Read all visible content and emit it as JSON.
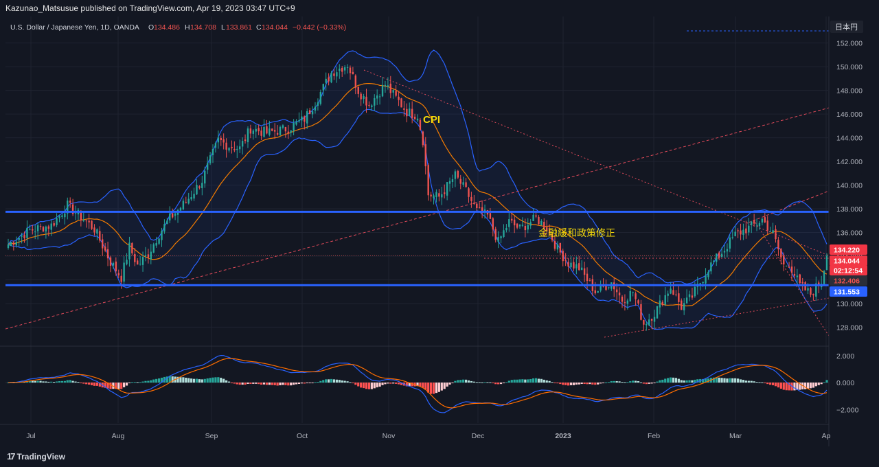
{
  "header": {
    "publish_line": "Kazunao_Matsusue published on TradingView.com, Apr 19, 2023 03:47 UTC+9"
  },
  "footer": {
    "brand": "TradingView"
  },
  "chart_data": {
    "type": "candlestick",
    "symbol_line": "U.S. Dollar / Japanese Yen, 1D, OANDA",
    "ohlc_label": {
      "o_prefix": "O",
      "o": "134.486",
      "h_prefix": "H",
      "h": "134.708",
      "l_prefix": "L",
      "l": "133.861",
      "c_prefix": "C",
      "c": "134.044",
      "change": "−0.442 (−0.33%)"
    },
    "currency_label": "日本円",
    "y_ticks": [
      "152.000",
      "150.000",
      "148.000",
      "146.000",
      "144.000",
      "142.000",
      "140.000",
      "138.000",
      "136.000",
      "134.000",
      "132.000",
      "130.000",
      "128.000"
    ],
    "y_tick_values": [
      152,
      150,
      148,
      146,
      144,
      142,
      140,
      138,
      136,
      134,
      132,
      130,
      128
    ],
    "ylim": [
      126.4,
      153.2
    ],
    "x_ticks": [
      "Jul",
      "Aug",
      "Sep",
      "Oct",
      "Nov",
      "Dec",
      "2023",
      "Feb",
      "Mar",
      "Ap"
    ],
    "price_badges": [
      {
        "text": "134.220",
        "color": "#f23645"
      },
      {
        "text": "134.044",
        "color": "#f23645"
      },
      {
        "text": "02:12:54",
        "color": "#f23645"
      },
      {
        "text": "132.406",
        "color": "#2a2e39"
      },
      {
        "text": "131.553",
        "color": "#2962ff"
      }
    ],
    "horizontal_levels": [
      137.75,
      131.55
    ],
    "annotations": [
      {
        "text": "CPI",
        "color": "#f5d90a"
      },
      {
        "text": "金融緩和政策修正",
        "color": "#f5d90a"
      }
    ],
    "bollinger_color": "#2962ff",
    "ma_color": "#f57c00",
    "up_color": "#26a69a",
    "down_color": "#ef5350",
    "close_waypoints": [
      [
        0,
        135.0
      ],
      [
        8,
        136.2
      ],
      [
        16,
        136.6
      ],
      [
        22,
        138.3
      ],
      [
        28,
        137.1
      ],
      [
        32,
        136.3
      ],
      [
        38,
        133.5
      ],
      [
        42,
        132.2
      ],
      [
        45,
        134.8
      ],
      [
        48,
        133.2
      ],
      [
        52,
        134.2
      ],
      [
        56,
        135.9
      ],
      [
        60,
        137.2
      ],
      [
        66,
        138.6
      ],
      [
        72,
        140.4
      ],
      [
        78,
        143.8
      ],
      [
        82,
        143.3
      ],
      [
        86,
        143.1
      ],
      [
        90,
        144.8
      ],
      [
        96,
        144.4
      ],
      [
        104,
        144.8
      ],
      [
        110,
        145.6
      ],
      [
        114,
        147.0
      ],
      [
        120,
        149.5
      ],
      [
        126,
        150.2
      ],
      [
        130,
        148.0
      ],
      [
        134,
        146.8
      ],
      [
        140,
        148.5
      ],
      [
        148,
        146.2
      ],
      [
        152,
        145.9
      ],
      [
        154,
        143.8
      ],
      [
        156,
        139.2
      ],
      [
        160,
        139.0
      ],
      [
        166,
        140.8
      ],
      [
        170,
        139.5
      ],
      [
        174,
        137.8
      ],
      [
        178,
        137.4
      ],
      [
        182,
        135.2
      ],
      [
        186,
        136.9
      ],
      [
        190,
        136.3
      ],
      [
        196,
        137.2
      ],
      [
        200,
        136.4
      ],
      [
        204,
        134.6
      ],
      [
        208,
        133.4
      ],
      [
        212,
        133.0
      ],
      [
        218,
        131.0
      ],
      [
        224,
        131.8
      ],
      [
        228,
        130.3
      ],
      [
        232,
        131.0
      ],
      [
        236,
        128.3
      ],
      [
        240,
        129.2
      ],
      [
        246,
        131.4
      ],
      [
        250,
        129.7
      ],
      [
        254,
        130.6
      ],
      [
        260,
        133.0
      ],
      [
        266,
        134.6
      ],
      [
        270,
        135.8
      ],
      [
        276,
        136.5
      ],
      [
        280,
        137.1
      ],
      [
        284,
        135.9
      ],
      [
        288,
        133.2
      ],
      [
        290,
        133.4
      ],
      [
        294,
        131.5
      ],
      [
        298,
        130.8
      ],
      [
        302,
        131.9
      ],
      [
        304,
        134.044
      ]
    ],
    "macd": {
      "y_ticks": [
        "2.000",
        "0.000",
        "−2.000"
      ],
      "y_tick_values": [
        2,
        0,
        -2
      ],
      "ylim": [
        -3.0,
        2.6
      ]
    }
  }
}
